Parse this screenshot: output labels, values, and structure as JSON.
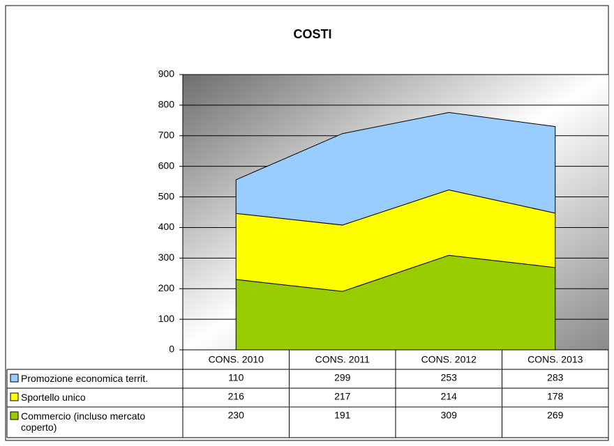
{
  "chart_data": {
    "type": "area",
    "stacked": true,
    "title": "COSTI",
    "categories": [
      "CONS. 2010",
      "CONS. 2011",
      "CONS. 2012",
      "CONS. 2013"
    ],
    "series": [
      {
        "name": "Promozione economica territ.",
        "color": "#99ccff",
        "values": [
          110,
          299,
          253,
          283
        ]
      },
      {
        "name": "Sportello unico",
        "color": "#ffff00",
        "values": [
          216,
          217,
          214,
          178
        ]
      },
      {
        "name": "Commercio (incluso mercato coperto)",
        "color": "#99cc00",
        "values": [
          230,
          191,
          309,
          269
        ]
      }
    ],
    "ylim": [
      0,
      900
    ],
    "yticks": [
      0,
      100,
      200,
      300,
      400,
      500,
      600,
      700,
      800,
      900
    ],
    "grid": true
  }
}
